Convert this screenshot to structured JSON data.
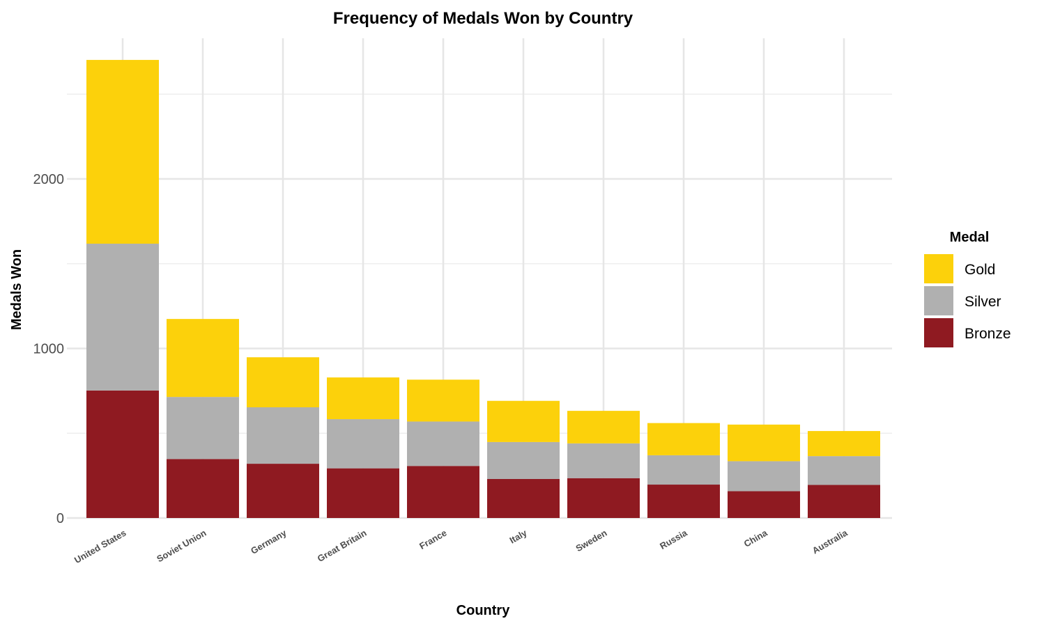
{
  "chart_data": {
    "type": "bar",
    "stacked": true,
    "title": "Frequency of Medals Won by Country",
    "xlabel": "Country",
    "ylabel": "Medals Won",
    "ylim": [
      0,
      2700
    ],
    "yticks": [
      0,
      1000,
      2000
    ],
    "grid": true,
    "categories": [
      "United States",
      "Soviet Union",
      "Germany",
      "Great Britain",
      "France",
      "Italy",
      "Sweden",
      "Russia",
      "China",
      "Australia"
    ],
    "series": [
      {
        "name": "Bronze",
        "color": "#8f1a21",
        "values": [
          752,
          348,
          320,
          293,
          307,
          230,
          235,
          197,
          158,
          195
        ]
      },
      {
        "name": "Silver",
        "color": "#b0b0b0",
        "values": [
          866,
          366,
          333,
          290,
          262,
          218,
          205,
          173,
          177,
          170
        ]
      },
      {
        "name": "Gold",
        "color": "#fcd10b",
        "values": [
          1084,
          460,
          295,
          246,
          247,
          243,
          192,
          190,
          216,
          148
        ]
      }
    ],
    "legend": {
      "title": "Medal",
      "position": "right",
      "order": [
        "Gold",
        "Silver",
        "Bronze"
      ]
    }
  }
}
